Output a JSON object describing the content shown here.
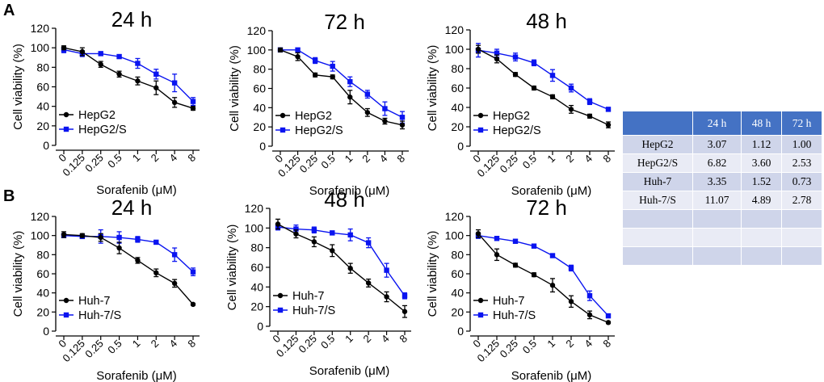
{
  "panel_labels": {
    "a": "A",
    "b": "B"
  },
  "colors": {
    "black_series": "#000000",
    "blue_series": "#0a14f0",
    "table_header": "#4472c4",
    "table_row_odd": "#cfd5ea",
    "table_row_even": "#e9ebf5"
  },
  "chart_data": [
    {
      "type": "line",
      "title": "24 h",
      "xlabel": "Sorafenib (μM)",
      "ylabel": "Cell viability (%)",
      "categories": [
        "0",
        "0.125",
        "0.25",
        "0.5",
        "1",
        "2",
        "4",
        "8"
      ],
      "ylim": [
        0,
        120
      ],
      "yticks": [
        0,
        20,
        40,
        60,
        80,
        100,
        120
      ],
      "series": [
        {
          "name": "HepG2",
          "values": [
            100,
            96,
            83,
            73,
            66,
            59,
            44,
            38
          ],
          "errors": [
            2,
            4,
            3,
            3,
            4,
            7,
            5,
            2
          ]
        },
        {
          "name": "HepG2/S",
          "values": [
            98,
            94,
            94,
            91,
            84,
            73,
            64,
            45
          ],
          "errors": [
            3,
            3,
            2,
            2,
            5,
            5,
            9,
            4
          ]
        }
      ]
    },
    {
      "type": "line",
      "title": "72 h",
      "xlabel": "Sorafenib (μM)",
      "ylabel": "Cell viability (%)",
      "categories": [
        "0",
        "0.125",
        "0.25",
        "0.5",
        "1",
        "2",
        "4",
        "8"
      ],
      "ylim": [
        0,
        120
      ],
      "yticks": [
        0,
        20,
        40,
        60,
        80,
        100,
        120
      ],
      "series": [
        {
          "name": "HepG2",
          "values": [
            100,
            93,
            74,
            72,
            51,
            35,
            26,
            22
          ],
          "errors": [
            2,
            4,
            2,
            2,
            7,
            4,
            3,
            4
          ]
        },
        {
          "name": "HepG2/S",
          "values": [
            100,
            100,
            89,
            83,
            67,
            54,
            39,
            30
          ],
          "errors": [
            2,
            2,
            3,
            5,
            5,
            4,
            7,
            6
          ]
        }
      ]
    },
    {
      "type": "line",
      "title": "48 h",
      "xlabel": "Sorafenib (μM)",
      "ylabel": "Cell viability (%)",
      "categories": [
        "0",
        "0.125",
        "0.25",
        "0.5",
        "1",
        "2",
        "4",
        "8"
      ],
      "ylim": [
        0,
        120
      ],
      "yticks": [
        0,
        20,
        40,
        60,
        80,
        100,
        120
      ],
      "series": [
        {
          "name": "HepG2",
          "values": [
            100,
            90,
            74,
            60,
            51,
            38,
            31,
            22
          ],
          "errors": [
            4,
            4,
            2,
            2,
            2,
            4,
            2,
            3
          ]
        },
        {
          "name": "HepG2/S",
          "values": [
            99,
            96,
            92,
            86,
            73,
            60,
            46,
            38
          ],
          "errors": [
            7,
            4,
            4,
            3,
            6,
            4,
            3,
            2
          ]
        }
      ]
    },
    {
      "type": "line",
      "title": "24 h",
      "xlabel": "Sorafenib (μM)",
      "ylabel": "Cell viability (%)",
      "categories": [
        "0",
        "0.125",
        "0.25",
        "0.5",
        "1",
        "2",
        "4",
        "8"
      ],
      "ylim": [
        0,
        120
      ],
      "yticks": [
        0,
        20,
        40,
        60,
        80,
        100,
        120
      ],
      "series": [
        {
          "name": "Huh-7",
          "values": [
            101,
            100,
            98,
            87,
            74,
            61,
            50,
            28
          ],
          "errors": [
            3,
            2,
            4,
            6,
            3,
            4,
            4,
            1
          ]
        },
        {
          "name": "Huh-7/S",
          "values": [
            100,
            99,
            99,
            98,
            96,
            93,
            80,
            62
          ],
          "errors": [
            2,
            2,
            7,
            6,
            3,
            2,
            7,
            4
          ]
        }
      ]
    },
    {
      "type": "line",
      "title": "48 h",
      "xlabel": "Sorafenib (μM)",
      "ylabel": "Cell viability (%)",
      "categories": [
        "0",
        "0.125",
        "0.25",
        "0.5",
        "1",
        "2",
        "4",
        "8"
      ],
      "ylim": [
        0,
        120
      ],
      "yticks": [
        0,
        20,
        40,
        60,
        80,
        100,
        120
      ],
      "series": [
        {
          "name": "Huh-7",
          "values": [
            104,
            94,
            86,
            77,
            59,
            44,
            30,
            15
          ],
          "errors": [
            5,
            4,
            5,
            6,
            5,
            4,
            5,
            6
          ]
        },
        {
          "name": "Huh-7/S",
          "values": [
            101,
            99,
            98,
            95,
            93,
            85,
            57,
            31
          ],
          "errors": [
            3,
            4,
            3,
            2,
            6,
            5,
            7,
            3
          ]
        }
      ]
    },
    {
      "type": "line",
      "title": "72 h",
      "xlabel": "Sorafenib (μM)",
      "ylabel": "Cell viability (%)",
      "categories": [
        "0",
        "0.125",
        "0.25",
        "0.5",
        "1",
        "2",
        "4",
        "8"
      ],
      "ylim": [
        0,
        120
      ],
      "yticks": [
        0,
        20,
        40,
        60,
        80,
        100,
        120
      ],
      "series": [
        {
          "name": "Huh-7",
          "values": [
            102,
            80,
            69,
            59,
            48,
            31,
            17,
            9
          ],
          "errors": [
            4,
            6,
            2,
            2,
            7,
            6,
            4,
            1
          ]
        },
        {
          "name": "Huh-7/S",
          "values": [
            100,
            97,
            94,
            89,
            79,
            66,
            37,
            16
          ],
          "errors": [
            3,
            2,
            2,
            2,
            2,
            3,
            5,
            2
          ]
        }
      ]
    }
  ],
  "table": {
    "headers": [
      "",
      "24 h",
      "48 h",
      "72 h"
    ],
    "rows": [
      [
        "HepG2",
        "3.07",
        "1.12",
        "1.00"
      ],
      [
        "HepG2/S",
        "6.82",
        "3.60",
        "2.53"
      ],
      [
        "Huh-7",
        "3.35",
        "1.52",
        "0.73"
      ],
      [
        "Huh-7/S",
        "11.07",
        "4.89",
        "2.78"
      ],
      [
        "",
        "",
        "",
        ""
      ],
      [
        "",
        "",
        "",
        ""
      ],
      [
        "",
        "",
        "",
        ""
      ]
    ]
  }
}
